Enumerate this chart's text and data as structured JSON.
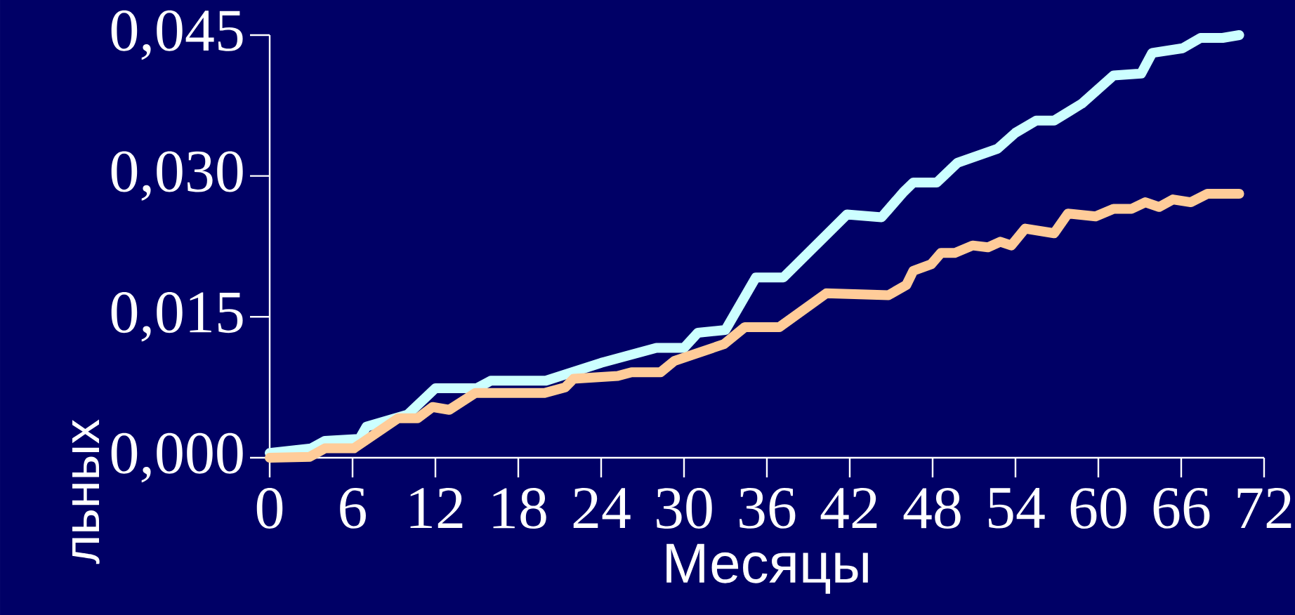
{
  "chart_data": {
    "type": "line",
    "xlabel": "Месяцы",
    "ylabel": "льных",
    "xlim": [
      0,
      72
    ],
    "ylim": [
      0,
      0.045
    ],
    "xticks": [
      0,
      6,
      12,
      18,
      24,
      30,
      36,
      42,
      48,
      54,
      60,
      66,
      72
    ],
    "yticks": [
      {
        "value": 0,
        "label": "0,000"
      },
      {
        "value": 0.015,
        "label": "0,015"
      },
      {
        "value": 0.03,
        "label": "0,030"
      },
      {
        "value": 0.045,
        "label": "0,045"
      }
    ],
    "series": [
      {
        "color": "#ccffff",
        "x": [
          0,
          3,
          4,
          6.5,
          7,
          10,
          12,
          15,
          16,
          20,
          24,
          26,
          28,
          30,
          31,
          33,
          35.2,
          37.2,
          41.8,
          44.3,
          45.9,
          46.6,
          48.3,
          49.8,
          52.7,
          54,
          55.5,
          56.8,
          58.8,
          61.1,
          63.1,
          63.9,
          66.1,
          67.4,
          69,
          70.2
        ],
        "values": [
          0.0005,
          0.001,
          0.0018,
          0.002,
          0.0033,
          0.0046,
          0.0074,
          0.0074,
          0.0082,
          0.0082,
          0.0101,
          0.0109,
          0.0117,
          0.0117,
          0.0133,
          0.0136,
          0.0192,
          0.0192,
          0.0259,
          0.0256,
          0.0283,
          0.0293,
          0.0293,
          0.0314,
          0.0329,
          0.0346,
          0.0359,
          0.0359,
          0.0377,
          0.0407,
          0.0409,
          0.0431,
          0.0436,
          0.0447,
          0.0447,
          0.045
        ]
      },
      {
        "color": "#ffcc99",
        "x": [
          0,
          2.9,
          4,
          6.1,
          9.3,
          10.7,
          11.8,
          13,
          14.9,
          19.9,
          21.4,
          22,
          25.2,
          26.2,
          28.3,
          29.3,
          30.5,
          32.9,
          34.4,
          36.9,
          40.3,
          44.8,
          46.1,
          46.6,
          47.9,
          48.6,
          49.6,
          50.9,
          52,
          52.9,
          53.7,
          54.7,
          56.8,
          57.8,
          59.8,
          61.1,
          62.4,
          63.4,
          64.4,
          65.4,
          66.7,
          67.9,
          70.2
        ],
        "values": [
          0,
          0.0001,
          0.001,
          0.001,
          0.0042,
          0.0042,
          0.0054,
          0.0051,
          0.0069,
          0.0069,
          0.0075,
          0.0084,
          0.0087,
          0.0091,
          0.0091,
          0.0103,
          0.0109,
          0.0121,
          0.0139,
          0.0139,
          0.0175,
          0.0173,
          0.0184,
          0.0199,
          0.0206,
          0.0218,
          0.0218,
          0.0226,
          0.0224,
          0.023,
          0.0226,
          0.0244,
          0.0239,
          0.026,
          0.0257,
          0.0265,
          0.0265,
          0.0272,
          0.0267,
          0.0275,
          0.0272,
          0.0281,
          0.0281
        ]
      }
    ]
  }
}
